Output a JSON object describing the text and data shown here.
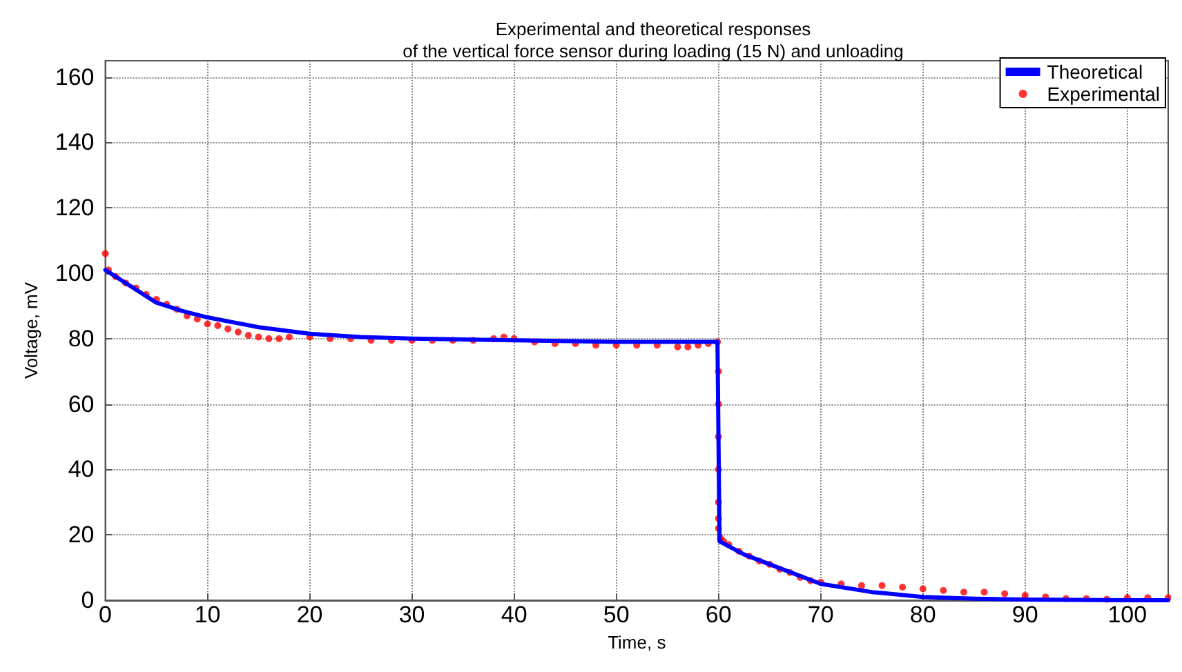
{
  "chart_data": {
    "type": "line",
    "title": "Experimental and theoretical responses\nof the vertical force sensor during loading (15 N) and unloading",
    "xlabel": "Time, s",
    "ylabel": "Voltage, mV",
    "xlim": [
      0,
      104
    ],
    "xticks": [
      0,
      10,
      20,
      30,
      40,
      50,
      60,
      70,
      80,
      90,
      100
    ],
    "ylim": [
      0,
      165
    ],
    "yticks": [
      0,
      20,
      40,
      60,
      80,
      100,
      120,
      140,
      160
    ],
    "grid": true,
    "legend": "top right",
    "line_style": "dotted",
    "series": [
      {
        "name": "Theoretical",
        "color": "#0000ff",
        "marker": "none",
        "line_style": "solid",
        "x": [
          0,
          2.5,
          5,
          7.5,
          10,
          12.5,
          15,
          20,
          25,
          30,
          40,
          50,
          59.9,
          60.1,
          62.5,
          65,
          70,
          75,
          80,
          85,
          90,
          100,
          104
        ],
        "values": [
          101,
          96,
          91,
          88.5,
          86.5,
          85,
          83.5,
          81.5,
          80.5,
          80,
          79.5,
          79,
          79,
          18,
          14,
          11,
          5,
          2.5,
          1,
          0.5,
          0.2,
          0,
          0
        ]
      },
      {
        "name": "Experimental",
        "type": "scatter",
        "color": "#ff0000",
        "marker": "circle",
        "x": [
          0,
          0.3,
          1,
          2,
          3,
          4,
          5,
          6,
          7,
          8,
          9,
          10,
          11,
          12,
          13,
          14,
          15,
          16,
          17,
          18,
          20,
          22,
          24,
          26,
          28,
          30,
          32,
          34,
          36,
          38,
          39,
          40,
          42,
          44,
          46,
          48,
          50,
          52,
          54,
          56,
          57,
          58,
          59,
          59.9,
          60,
          60,
          60,
          60,
          60,
          60,
          60,
          60.2,
          60.5,
          61,
          62,
          63,
          64,
          65,
          66,
          67,
          68,
          69,
          70,
          72,
          74,
          76,
          78,
          80,
          82,
          84,
          86,
          88,
          90,
          92,
          94,
          96,
          98,
          100,
          102,
          104
        ],
        "values": [
          106,
          101,
          99,
          97,
          95.5,
          93.5,
          92,
          90.5,
          89,
          87,
          86,
          84.5,
          84,
          83,
          82,
          81,
          80.5,
          80,
          80,
          80.5,
          80.5,
          80,
          80,
          79.5,
          79.5,
          79.5,
          79.5,
          79.5,
          79.5,
          80,
          80.5,
          80,
          79,
          78.5,
          78.5,
          78,
          78,
          78,
          78,
          77.5,
          77.5,
          78,
          78.5,
          79,
          70,
          60,
          50,
          40,
          30,
          25,
          22,
          19,
          18,
          17,
          15,
          13.5,
          12,
          11,
          9.5,
          8.5,
          7,
          6,
          5.5,
          5,
          4.5,
          4.5,
          4,
          3.5,
          3,
          2.5,
          2.5,
          2,
          1.5,
          1,
          0.5,
          0.5,
          0.3,
          0.8,
          0.8,
          0.8
        ]
      }
    ]
  }
}
